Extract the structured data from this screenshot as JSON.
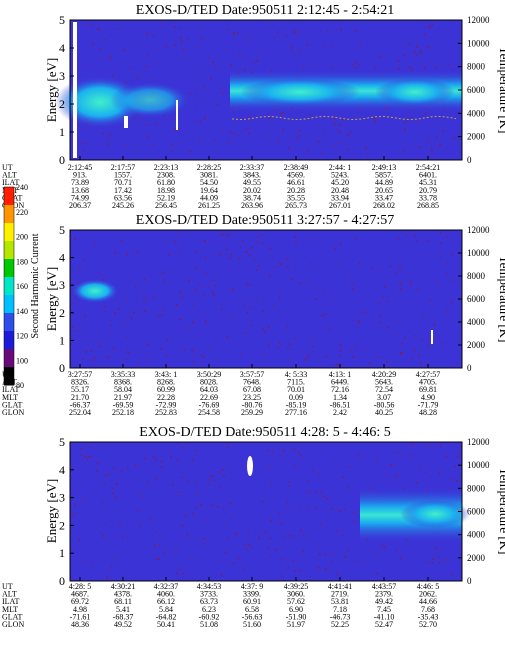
{
  "chart_data": [
    {
      "type": "heatmap",
      "title": "EXOS-D/TED   Date:950511   2:12:45 - 2:54:21",
      "ylabel": "Energy [eV]",
      "y2label": "Temperature [K]",
      "ylim": [
        0,
        5
      ],
      "y2lim": [
        0,
        12000
      ],
      "yticks": [
        "0",
        "1",
        "2",
        "3",
        "4",
        "5"
      ],
      "y2ticks": [
        "0",
        "2000",
        "4000",
        "6000",
        "8000",
        "10000",
        "12000"
      ],
      "row_labels": [
        "UT",
        "ALT",
        "ILAT",
        "MLT",
        "GLAT",
        "GLON"
      ],
      "columns": [
        [
          "2:12:45",
          "913.",
          "73.89",
          "13.68",
          "74.99",
          "206.37"
        ],
        [
          "2:17:57",
          "1557.",
          "70.71",
          "17.42",
          "63.56",
          "245.26"
        ],
        [
          "2:23:13",
          "2308.",
          "61.80",
          "18.98",
          "52.19",
          "256.45"
        ],
        [
          "2:28:25",
          "3081.",
          "54.50",
          "19.64",
          "44.09",
          "261.25"
        ],
        [
          "2:33:37",
          "3843.",
          "49.55",
          "20.02",
          "38.74",
          "263.96"
        ],
        [
          "2:38:49",
          "4569.",
          "46.61",
          "20.28",
          "35.55",
          "265.73"
        ],
        [
          "2:44: 1",
          "5243.",
          "45.20",
          "20.48",
          "33.94",
          "267.01"
        ],
        [
          "2:49:13",
          "5857.",
          "44.89",
          "20.65",
          "33.47",
          "268.02"
        ],
        [
          "2:54:21",
          "6401.",
          "45.31",
          "20.79",
          "33.78",
          "268.85"
        ]
      ],
      "notes": "Enhanced emission near 2-3 eV across the pass, strongest after ~2:30"
    },
    {
      "type": "heatmap",
      "title": "EXOS-D/TED   Date:950511   3:27:57 - 4:27:57",
      "ylabel": "Energy [eV]",
      "y2label": "Temperature [K]",
      "ylim": [
        0,
        5
      ],
      "y2lim": [
        0,
        12000
      ],
      "yticks": [
        "0",
        "1",
        "2",
        "3",
        "4",
        "5"
      ],
      "y2ticks": [
        "0",
        "2000",
        "4000",
        "6000",
        "8000",
        "10000",
        "12000"
      ],
      "row_labels": [
        "UT",
        "ALT",
        "ILAT",
        "MLT",
        "GLAT",
        "GLON"
      ],
      "columns": [
        [
          "3:27:57",
          "8326.",
          "55.17",
          "21.70",
          "-66.37",
          "252.04"
        ],
        [
          "3:35:33",
          "8368.",
          "58.04",
          "21.97",
          "-69.59",
          "252.18"
        ],
        [
          "3:43: 1",
          "8268.",
          "60.99",
          "22.28",
          "-72.99",
          "252.83"
        ],
        [
          "3:50:29",
          "8028.",
          "64.03",
          "22.69",
          "-76.69",
          "254.58"
        ],
        [
          "3:57:57",
          "7648.",
          "67.08",
          "23.25",
          "-80.76",
          "259.29"
        ],
        [
          "4: 5:33",
          "7115.",
          "70.01",
          "0.09",
          "-85.19",
          "277.16"
        ],
        [
          "4:13: 1",
          "6449.",
          "72.16",
          "1.34",
          "-86.51",
          "2.42"
        ],
        [
          "4:20:29",
          "5643.",
          "72.54",
          "3.07",
          "-80.56",
          "40.25"
        ],
        [
          "4:27:57",
          "4705.",
          "69.81",
          "4.90",
          "-71.79",
          "48.28"
        ]
      ],
      "notes": "Weak band near 3 eV before ~3:33, otherwise background"
    },
    {
      "type": "heatmap",
      "title": "EXOS-D/TED   Date:950511   4:28: 5 - 4:46: 5",
      "ylabel": "Energy [eV]",
      "y2label": "Temperature [K]",
      "ylim": [
        0,
        5
      ],
      "y2lim": [
        0,
        12000
      ],
      "yticks": [
        "0",
        "1",
        "2",
        "3",
        "4",
        "5"
      ],
      "y2ticks": [
        "0",
        "2000",
        "4000",
        "6000",
        "8000",
        "10000",
        "12000"
      ],
      "row_labels": [
        "UT",
        "ALT",
        "ILAT",
        "MLT",
        "GLAT",
        "GLON"
      ],
      "columns": [
        [
          "4:28: 5",
          "4687.",
          "69.72",
          "4.98",
          "-71.61",
          "48.36"
        ],
        [
          "4:30:21",
          "4378.",
          "68.11",
          "5.41",
          "-68.37",
          "49.52"
        ],
        [
          "4:32:37",
          "4060.",
          "66.12",
          "5.84",
          "-64.82",
          "50.41"
        ],
        [
          "4:34:53",
          "3733.",
          "63.73",
          "6.23",
          "-60.92",
          "51.08"
        ],
        [
          "4:37: 9",
          "3399.",
          "60.91",
          "6.58",
          "-56.63",
          "51.60"
        ],
        [
          "4:39:25",
          "3060.",
          "57.62",
          "6.90",
          "-51.90",
          "51.97"
        ],
        [
          "4:41:41",
          "2719.",
          "53.81",
          "7.18",
          "-46.73",
          "52.25"
        ],
        [
          "4:43:57",
          "2379.",
          "49.42",
          "7.45",
          "-41.10",
          "52.47"
        ],
        [
          "4:46: 5",
          "2062.",
          "44.66",
          "7.68",
          "-35.43",
          "52.70"
        ]
      ],
      "notes": "Emission near 2-3 eV appearing after ~4:41"
    }
  ],
  "colorbar": {
    "label": "Second Harmonic Current",
    "ticks": [
      "80",
      "100",
      "120",
      "140",
      "160",
      "180",
      "200",
      "220",
      "240"
    ],
    "colors": [
      "#000000",
      "#6a0a7a",
      "#1c1cd8",
      "#2f4de8",
      "#00bfff",
      "#00e5c8",
      "#00c800",
      "#b4e600",
      "#fff000",
      "#ff9600",
      "#ff1e00"
    ]
  },
  "colors": {
    "background": "#3b33d6",
    "band": "#1ec8f0",
    "band_core": "#3fe8d0",
    "noise": "#8a1a40"
  }
}
